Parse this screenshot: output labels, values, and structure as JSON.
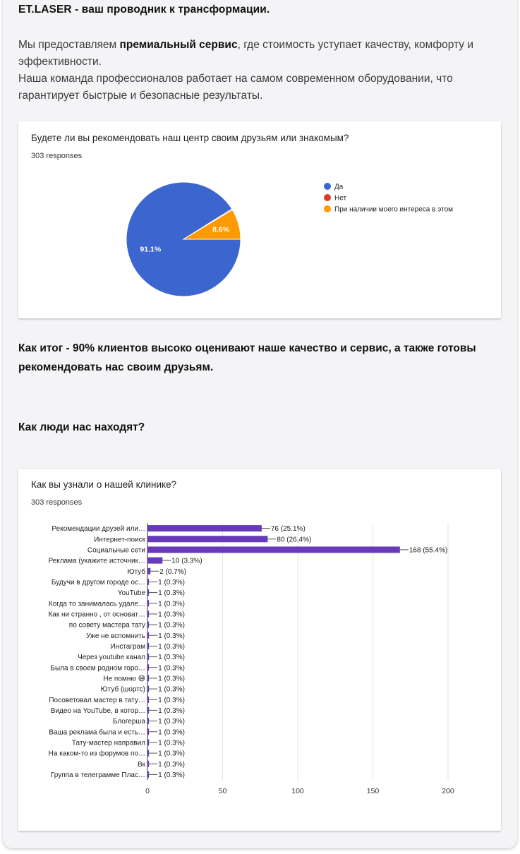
{
  "headline": "ET.LASER - ваш проводник к трансформации.",
  "intro": {
    "line1_before": "Мы предоставляем ",
    "line1_bold": "премиальный сервис",
    "line1_after": ", где стоимость уступает качеству, комфорту и эффективности.",
    "line2": "Наша команда профессионалов работает на самом современном оборудовании, что гарантирует быстрые и безопасные результаты."
  },
  "summary": "Как итог - 90% клиентов высоко оценивают наше качество и сервис, а также готовы рекомендовать нас своим друзьям.",
  "section_title": "Как люди нас находят?",
  "chart_data": [
    {
      "type": "pie",
      "title": "Будете ли вы рекомендовать наш центр своим друзьям или знакомым?",
      "subtitle": "303 responses",
      "legend_position": "right",
      "slices": [
        {
          "label": "Да",
          "value": 91.1,
          "display": "91.1%",
          "color": "#3c66cf"
        },
        {
          "label": "Нет",
          "value": 0.3,
          "display": "",
          "color": "#db3a26"
        },
        {
          "label": "При наличии моего интереса в этом",
          "value": 8.6,
          "display": "8.6%",
          "color": "#ff9a00"
        }
      ]
    },
    {
      "type": "bar",
      "orientation": "horizontal",
      "title": "Как вы узнали о нашей клинике?",
      "subtitle": "303 responses",
      "bar_color": "#673ab7",
      "xlim": [
        0,
        200
      ],
      "xticks": [
        "0",
        "50",
        "100",
        "150",
        "200"
      ],
      "grid": true,
      "categories": [
        "Рекомендации друзей или…",
        "Интернет-поиск",
        "Социальные сети",
        "Реклама (укажите источник…",
        "Ютуб",
        "Будучи в другом городе ос…",
        "YouTube",
        "Когда то занималась удале…",
        "Как ни странно , от основат…",
        "по совету мастера тату",
        "Уже не вспомнить",
        "Инстаграм",
        "Через youtube канал",
        "Была в своем родном горо…",
        "Не помню 😅",
        "Ютуб (шортс)",
        "Посоветовал мастер в тату…",
        "Видео на YouTube, в котор…",
        "Блогерша",
        "Ваша реклама была и есть…",
        "Тату-мастер направил",
        "На каком-то из форумов по…",
        "Вк",
        "Группа в телеграмме Плас…"
      ],
      "values": [
        76,
        80,
        168,
        10,
        2,
        1,
        1,
        1,
        1,
        1,
        1,
        1,
        1,
        1,
        1,
        1,
        1,
        1,
        1,
        1,
        1,
        1,
        1,
        1
      ],
      "value_labels": [
        "76 (25.1%)",
        "80 (26.4%)",
        "168 (55.4%)",
        "10 (3.3%)",
        "2 (0.7%)",
        "1 (0.3%)",
        "1 (0.3%)",
        "1 (0.3%)",
        "1 (0.3%)",
        "1 (0.3%)",
        "1 (0.3%)",
        "1 (0.3%)",
        "1 (0.3%)",
        "1 (0.3%)",
        "1 (0.3%)",
        "1 (0.3%)",
        "1 (0.3%)",
        "1 (0.3%)",
        "1 (0.3%)",
        "1 (0.3%)",
        "1 (0.3%)",
        "1 (0.3%)",
        "1 (0.3%)",
        "1 (0.3%)"
      ]
    }
  ]
}
